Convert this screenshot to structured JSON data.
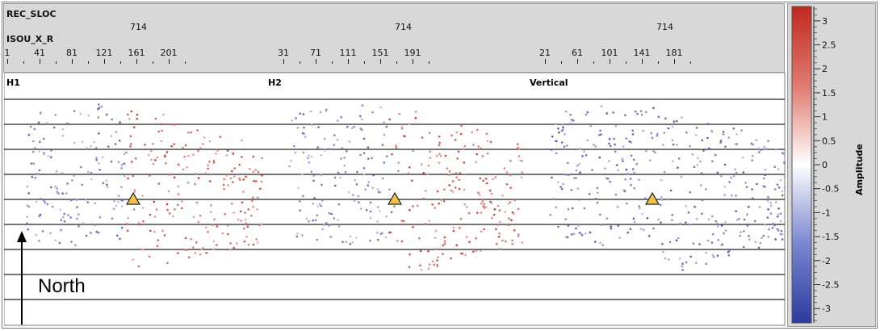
{
  "header": {
    "rec_label": "REC_SLOC",
    "isou_label": "ISOU_X_R",
    "groups": [
      {
        "rec": "714",
        "ticks": [
          "1",
          "41",
          "81",
          "121",
          "161",
          "201"
        ]
      },
      {
        "rec": "714",
        "ticks": [
          "31",
          "71",
          "111",
          "151",
          "191"
        ]
      },
      {
        "rec": "714",
        "ticks": [
          "21",
          "61",
          "101",
          "141",
          "181"
        ]
      }
    ]
  },
  "panels": [
    {
      "label": "H1"
    },
    {
      "label": "H2"
    },
    {
      "label": "Vertical"
    }
  ],
  "annotation": {
    "north_label": "North"
  },
  "chart_data": {
    "type": "scatter",
    "title": "",
    "colorbar": {
      "label": "Amplitude",
      "range": [
        -3.3,
        3.3
      ],
      "ticks": [
        "3",
        "2.5",
        "2",
        "1.5",
        "1",
        "0.5",
        "0",
        "-0.5",
        "-1",
        "-1.5",
        "-2",
        "-2.5",
        "-3"
      ],
      "colors": {
        "low": "#2b3a9c",
        "mid": "#ffffff",
        "high": "#c0281f"
      }
    },
    "marker": {
      "shape": "triangle",
      "color": "#f0c24a"
    }
  }
}
